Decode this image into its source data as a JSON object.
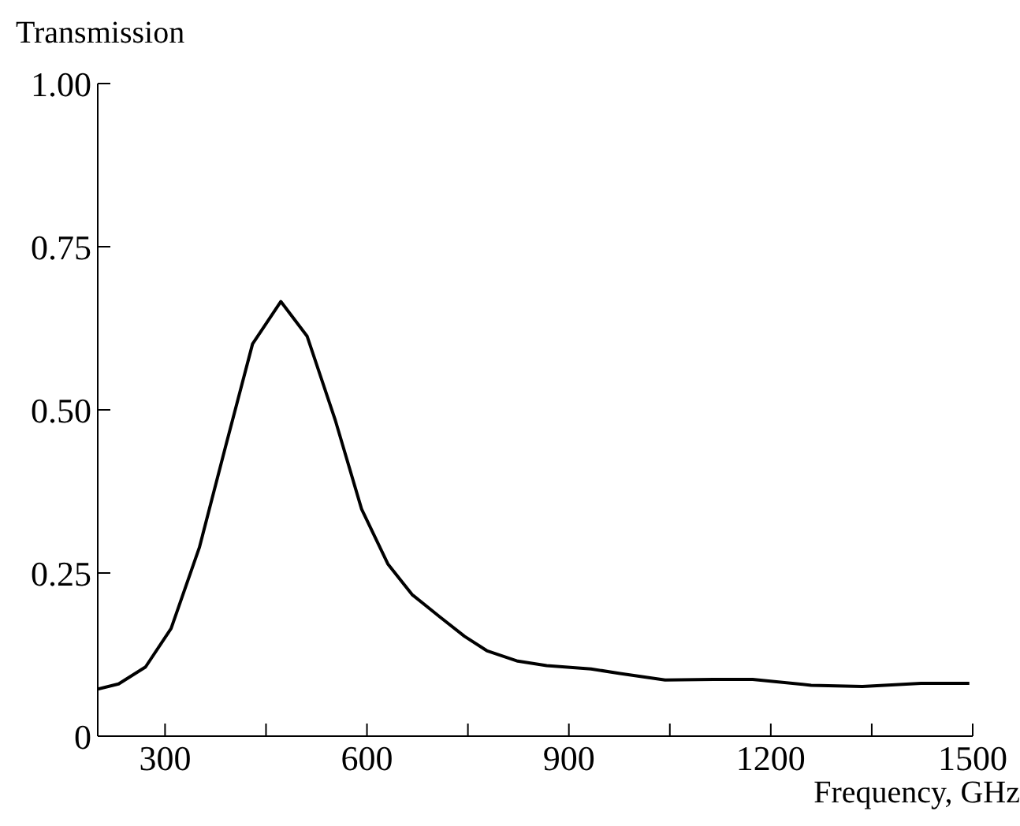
{
  "chart_data": {
    "type": "line",
    "ylabel": "Transmission",
    "xlabel": "Frequency, GHz",
    "x": [
      200,
      231,
      271,
      309,
      351,
      390,
      430,
      472,
      511,
      553,
      592,
      631,
      667,
      708,
      745,
      778,
      824,
      867,
      933,
      976,
      1043,
      1115,
      1173,
      1260,
      1336,
      1423,
      1495
    ],
    "series": [
      {
        "color": "#000000",
        "values": [
          0.072,
          0.08,
          0.106,
          0.165,
          0.289,
          0.444,
          0.601,
          0.666,
          0.613,
          0.484,
          0.348,
          0.264,
          0.217,
          0.183,
          0.153,
          0.131,
          0.115,
          0.108,
          0.103,
          0.096,
          0.086,
          0.087,
          0.087,
          0.078,
          0.076,
          0.081,
          0.081
        ]
      }
    ],
    "xlim": [
      200,
      1500
    ],
    "xticks": [
      300,
      {
        "value": 450,
        "label": null
      },
      600,
      {
        "value": 750,
        "label": null
      },
      900,
      {
        "value": 1050,
        "label": null
      },
      1200,
      {
        "value": 1350,
        "label": null
      },
      1500
    ],
    "ylim": [
      0,
      1
    ],
    "yticks": [
      0,
      0.25,
      {
        "value": 0.5,
        "label": "0.50"
      },
      0.75,
      {
        "value": 1,
        "label": "1.00"
      }
    ],
    "grid": false,
    "legend": false,
    "marker": "none",
    "line_style": "solid"
  }
}
